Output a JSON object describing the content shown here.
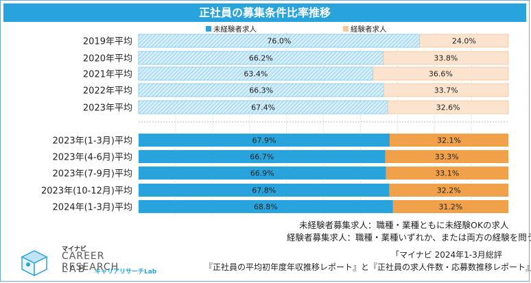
{
  "title": "正社員の募集条件比率推移",
  "legend": [
    {
      "label": "未経験者求人",
      "color": "#29a3dc"
    },
    {
      "label": "経験者求人",
      "color": "#f7c79a"
    }
  ],
  "chart_data": {
    "type": "bar",
    "stacked": true,
    "orientation": "horizontal",
    "percent": true,
    "xlim": [
      0,
      100
    ],
    "categories": [
      "2019年平均",
      "2020年平均",
      "2021年平均",
      "2022年平均",
      "2023年平均",
      "2023年(1-3月)平均",
      "2023年(4-6月)平均",
      "2023年(7-9月)平均",
      "2023年(10-12月)平均",
      "2024年(1-3月)平均"
    ],
    "value_labels": {
      "inexperienced": [
        "76.0%",
        "66.2%",
        "63.4%",
        "66.3%",
        "67.4%",
        "67.9%",
        "66.7%",
        "66.9%",
        "67.8%",
        "68.8%"
      ],
      "experienced": [
        "24.0%",
        "33.8%",
        "36.6%",
        "33.7%",
        "32.6%",
        "32.1%",
        "33.3%",
        "33.1%",
        "32.2%",
        "31.2%"
      ]
    },
    "series": [
      {
        "name": "未経験者求人",
        "values": [
          76.0,
          66.2,
          63.4,
          66.3,
          67.4,
          67.9,
          66.7,
          66.9,
          67.8,
          68.8
        ]
      },
      {
        "name": "経験者求人",
        "values": [
          24.0,
          33.8,
          36.6,
          33.7,
          32.6,
          32.1,
          33.3,
          33.1,
          32.2,
          31.2
        ]
      }
    ],
    "colors": {
      "annual_inexperienced": "#bfe4f6",
      "annual_experienced": "#fbe3cd",
      "quarterly_inexperienced": "#29a3dc",
      "quarterly_experienced": "#f0a14a"
    }
  },
  "notes": [
    "未経験者募集求人：職種・業種ともに未経験OKの求人",
    "経験者募集求人：職種・業種いずれか、または両方の経験を問う求人"
  ],
  "source": [
    "「マイナビ 2024年1-3月総評",
    "『正社員の平均初年度年収推移レポート』と『正社員の求人件数・応募数推移レポート』」"
  ],
  "logo": {
    "brand": "マイナビ",
    "line1": "CAREER RESEARCH",
    "line2": "LAB",
    "sub": "キャリアリサーチLab"
  }
}
